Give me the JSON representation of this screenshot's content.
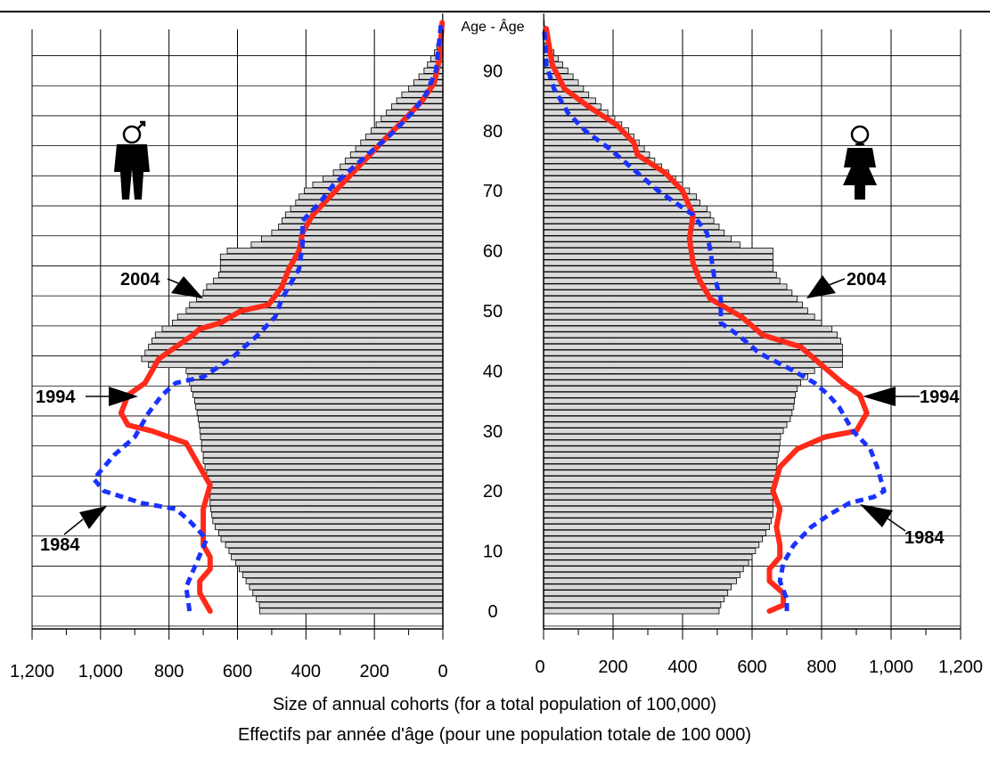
{
  "chart_data": {
    "type": "population-pyramid",
    "age_axis_label": "Age - Âge",
    "age_ticks": [
      0,
      10,
      20,
      30,
      40,
      50,
      60,
      70,
      80,
      90
    ],
    "x_ticks": [
      0,
      200,
      400,
      600,
      800,
      1000,
      1200
    ],
    "x_tick_labels": [
      "0",
      "200",
      "400",
      "600",
      "800",
      "1,000",
      "1,200"
    ],
    "xlim": [
      0,
      1200
    ],
    "ylim": [
      0,
      100
    ],
    "xlabel": "Size of annual cohorts (for a total population of 100,000)",
    "xlabel_fr": "Effectifs par année d'âge (pour une population totale de 100 000)",
    "grid": true,
    "colors": {
      "bar_fill": "#d9d9d9",
      "line_2004": "#ff2a1a",
      "line_1984": "#1a32ff"
    },
    "bars_2004": {
      "ages": [
        0,
        1,
        2,
        3,
        4,
        5,
        6,
        7,
        8,
        9,
        10,
        11,
        12,
        13,
        14,
        15,
        16,
        17,
        18,
        19,
        20,
        21,
        22,
        23,
        24,
        25,
        26,
        27,
        28,
        29,
        30,
        31,
        32,
        33,
        34,
        35,
        36,
        37,
        38,
        39,
        40,
        41,
        42,
        43,
        44,
        45,
        46,
        47,
        48,
        49,
        50,
        51,
        52,
        53,
        54,
        55,
        56,
        57,
        58,
        59,
        60,
        61,
        62,
        63,
        64,
        65,
        66,
        67,
        68,
        69,
        70,
        71,
        72,
        73,
        74,
        75,
        76,
        77,
        78,
        79,
        80,
        81,
        82,
        83,
        84,
        85,
        86,
        87,
        88,
        89,
        90,
        91,
        92,
        93,
        94,
        95,
        96,
        97,
        98,
        99
      ],
      "male": [
        535,
        536,
        545,
        555,
        565,
        575,
        585,
        595,
        605,
        618,
        625,
        635,
        648,
        655,
        665,
        672,
        675,
        678,
        680,
        680,
        680,
        680,
        685,
        690,
        695,
        700,
        700,
        705,
        705,
        708,
        710,
        712,
        715,
        718,
        722,
        725,
        730,
        735,
        740,
        745,
        750,
        860,
        880,
        870,
        860,
        850,
        840,
        820,
        790,
        775,
        750,
        740,
        720,
        700,
        690,
        670,
        655,
        650,
        650,
        650,
        630,
        560,
        530,
        500,
        480,
        470,
        460,
        445,
        430,
        420,
        405,
        380,
        350,
        320,
        300,
        285,
        270,
        255,
        240,
        225,
        210,
        195,
        180,
        165,
        150,
        135,
        120,
        100,
        85,
        70,
        55,
        45,
        35,
        25,
        18,
        12,
        8,
        4,
        2,
        1
      ],
      "female": [
        505,
        510,
        520,
        530,
        540,
        555,
        565,
        575,
        590,
        600,
        610,
        620,
        630,
        640,
        650,
        655,
        660,
        660,
        660,
        660,
        665,
        668,
        670,
        670,
        670,
        672,
        675,
        678,
        680,
        682,
        690,
        700,
        710,
        715,
        720,
        722,
        725,
        730,
        740,
        760,
        780,
        860,
        860,
        860,
        860,
        855,
        845,
        830,
        800,
        780,
        760,
        745,
        730,
        715,
        700,
        680,
        670,
        660,
        660,
        660,
        660,
        565,
        540,
        520,
        505,
        490,
        480,
        470,
        450,
        440,
        420,
        400,
        380,
        360,
        340,
        320,
        305,
        290,
        275,
        260,
        245,
        225,
        205,
        185,
        165,
        150,
        130,
        115,
        100,
        85,
        70,
        55,
        42,
        30,
        20,
        12,
        8,
        4,
        2,
        1
      ]
    },
    "series": [
      {
        "name": "2004",
        "male": [
          [
            680,
            0
          ],
          [
            710,
            3
          ],
          [
            710,
            5
          ],
          [
            680,
            7
          ],
          [
            680,
            9
          ],
          [
            700,
            11
          ],
          [
            700,
            14
          ],
          [
            700,
            17
          ],
          [
            690,
            19
          ],
          [
            680,
            21
          ],
          [
            720,
            25
          ],
          [
            750,
            28
          ],
          [
            850,
            30
          ],
          [
            920,
            31
          ],
          [
            940,
            33
          ],
          [
            920,
            36
          ],
          [
            870,
            38
          ],
          [
            850,
            40
          ],
          [
            830,
            42
          ],
          [
            780,
            44
          ],
          [
            730,
            46
          ],
          [
            710,
            47
          ],
          [
            650,
            48
          ],
          [
            590,
            50
          ],
          [
            510,
            51
          ],
          [
            470,
            54
          ],
          [
            450,
            57
          ],
          [
            420,
            60
          ],
          [
            410,
            63
          ],
          [
            380,
            66
          ],
          [
            330,
            69
          ],
          [
            280,
            72
          ],
          [
            230,
            75
          ],
          [
            180,
            78
          ],
          [
            110,
            82
          ],
          [
            60,
            85
          ],
          [
            25,
            88
          ],
          [
            10,
            92
          ],
          [
            2,
            98
          ]
        ],
        "female": [
          [
            650,
            0
          ],
          [
            690,
            1
          ],
          [
            690,
            3
          ],
          [
            650,
            5
          ],
          [
            650,
            7
          ],
          [
            680,
            9
          ],
          [
            680,
            11
          ],
          [
            670,
            14
          ],
          [
            680,
            17
          ],
          [
            660,
            20
          ],
          [
            680,
            24
          ],
          [
            730,
            27
          ],
          [
            810,
            29
          ],
          [
            900,
            30
          ],
          [
            930,
            33
          ],
          [
            910,
            36
          ],
          [
            860,
            38
          ],
          [
            820,
            40
          ],
          [
            760,
            43
          ],
          [
            740,
            44
          ],
          [
            630,
            46
          ],
          [
            570,
            49
          ],
          [
            480,
            52
          ],
          [
            450,
            55
          ],
          [
            430,
            58
          ],
          [
            420,
            62
          ],
          [
            430,
            66
          ],
          [
            400,
            70
          ],
          [
            350,
            73
          ],
          [
            270,
            76
          ],
          [
            260,
            78
          ],
          [
            210,
            81
          ],
          [
            130,
            84
          ],
          [
            60,
            87
          ],
          [
            25,
            91
          ],
          [
            8,
            97
          ]
        ]
      },
      {
        "name": "1984",
        "male": [
          [
            740,
            0
          ],
          [
            750,
            4
          ],
          [
            720,
            8
          ],
          [
            690,
            12
          ],
          [
            740,
            15
          ],
          [
            780,
            17
          ],
          [
            880,
            18
          ],
          [
            990,
            20
          ],
          [
            1020,
            22
          ],
          [
            960,
            26
          ],
          [
            900,
            29
          ],
          [
            860,
            33
          ],
          [
            820,
            36
          ],
          [
            780,
            38
          ],
          [
            700,
            39
          ],
          [
            620,
            42
          ],
          [
            540,
            46
          ],
          [
            490,
            49
          ],
          [
            470,
            52
          ],
          [
            420,
            57
          ],
          [
            410,
            61
          ],
          [
            410,
            65
          ],
          [
            360,
            68
          ],
          [
            320,
            71
          ],
          [
            260,
            74
          ],
          [
            200,
            77
          ],
          [
            140,
            80
          ],
          [
            90,
            83
          ],
          [
            50,
            86
          ],
          [
            20,
            90
          ],
          [
            5,
            98
          ]
        ],
        "female": [
          [
            700,
            0
          ],
          [
            700,
            2
          ],
          [
            680,
            5
          ],
          [
            690,
            8
          ],
          [
            720,
            11
          ],
          [
            770,
            14
          ],
          [
            820,
            16
          ],
          [
            880,
            18
          ],
          [
            950,
            19
          ],
          [
            980,
            20
          ],
          [
            960,
            24
          ],
          [
            940,
            27
          ],
          [
            890,
            30
          ],
          [
            850,
            34
          ],
          [
            820,
            36
          ],
          [
            780,
            38
          ],
          [
            720,
            40
          ],
          [
            620,
            43
          ],
          [
            560,
            46
          ],
          [
            510,
            48
          ],
          [
            510,
            52
          ],
          [
            490,
            56
          ],
          [
            480,
            60
          ],
          [
            470,
            63
          ],
          [
            430,
            66
          ],
          [
            330,
            70
          ],
          [
            270,
            73
          ],
          [
            190,
            77
          ],
          [
            120,
            80
          ],
          [
            70,
            83
          ],
          [
            30,
            87
          ],
          [
            8,
            91
          ],
          [
            2,
            97
          ]
        ]
      }
    ],
    "year_labels": [
      "2004",
      "1994",
      "1984"
    ]
  }
}
